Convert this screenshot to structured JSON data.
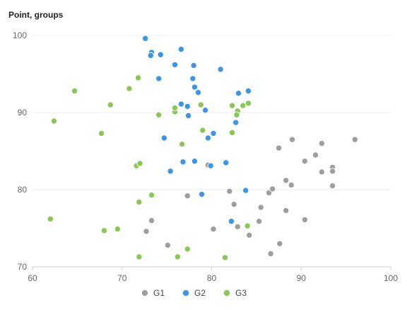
{
  "chart_data": {
    "type": "scatter",
    "title": "Point, groups",
    "xlabel": "",
    "ylabel": "",
    "xlim": [
      60,
      100
    ],
    "ylim": [
      70,
      100
    ],
    "x_ticks": [
      60,
      70,
      80,
      90,
      100
    ],
    "y_ticks": [
      70,
      80,
      90,
      100
    ],
    "grid": "horizontal",
    "legend_position": "bottom",
    "series": [
      {
        "name": "G1",
        "color": "#9e9e9e",
        "points": [
          [
            79.6,
            83.2
          ],
          [
            82.0,
            79.8
          ],
          [
            82.5,
            78.1
          ],
          [
            85.5,
            77.7
          ],
          [
            86.4,
            79.6
          ],
          [
            86.8,
            80.1
          ],
          [
            87.5,
            85.4
          ],
          [
            88.3,
            81.2
          ],
          [
            89.0,
            86.5
          ],
          [
            88.9,
            80.6
          ],
          [
            90.4,
            83.7
          ],
          [
            91.6,
            84.5
          ],
          [
            92.3,
            86.0
          ],
          [
            92.3,
            82.3
          ],
          [
            93.5,
            82.9
          ],
          [
            93.5,
            82.4
          ],
          [
            93.5,
            80.5
          ],
          [
            96.0,
            86.5
          ],
          [
            77.3,
            79.2
          ],
          [
            73.3,
            76.0
          ],
          [
            72.7,
            74.6
          ],
          [
            75.1,
            72.8
          ],
          [
            80.2,
            74.9
          ],
          [
            82.9,
            75.2
          ],
          [
            84.2,
            74.1
          ],
          [
            85.3,
            75.9
          ],
          [
            88.3,
            77.3
          ],
          [
            87.6,
            73.0
          ],
          [
            86.6,
            71.7
          ],
          [
            90.4,
            76.1
          ]
        ]
      },
      {
        "name": "G2",
        "color": "#3b96e8",
        "points": [
          [
            72.6,
            99.6
          ],
          [
            73.3,
            97.8
          ],
          [
            73.2,
            97.4
          ],
          [
            74.3,
            97.5
          ],
          [
            75.9,
            96.2
          ],
          [
            76.6,
            98.2
          ],
          [
            78.0,
            96.1
          ],
          [
            81.0,
            95.6
          ],
          [
            77.9,
            94.4
          ],
          [
            74.1,
            94.4
          ],
          [
            78.1,
            93.3
          ],
          [
            78.5,
            92.6
          ],
          [
            83.0,
            92.5
          ],
          [
            84.1,
            92.8
          ],
          [
            76.6,
            91.1
          ],
          [
            77.3,
            90.8
          ],
          [
            79.3,
            90.3
          ],
          [
            77.4,
            89.6
          ],
          [
            82.7,
            88.7
          ],
          [
            80.2,
            87.3
          ],
          [
            79.6,
            86.7
          ],
          [
            74.7,
            86.7
          ],
          [
            76.8,
            83.6
          ],
          [
            78.1,
            83.7
          ],
          [
            81.6,
            83.5
          ],
          [
            79.9,
            83.1
          ],
          [
            75.4,
            82.4
          ],
          [
            83.8,
            79.9
          ],
          [
            78.9,
            79.4
          ],
          [
            82.2,
            75.9
          ]
        ]
      },
      {
        "name": "G3",
        "color": "#8bc753",
        "points": [
          [
            64.7,
            92.8
          ],
          [
            62.4,
            88.9
          ],
          [
            67.7,
            87.3
          ],
          [
            68.7,
            91.0
          ],
          [
            70.8,
            93.1
          ],
          [
            71.8,
            94.5
          ],
          [
            74.1,
            89.7
          ],
          [
            75.9,
            90.1
          ],
          [
            75.9,
            90.6
          ],
          [
            78.8,
            91.0
          ],
          [
            79.0,
            87.7
          ],
          [
            76.7,
            85.9
          ],
          [
            82.3,
            87.4
          ],
          [
            82.3,
            90.9
          ],
          [
            82.9,
            90.2
          ],
          [
            82.8,
            89.7
          ],
          [
            83.5,
            90.9
          ],
          [
            84.1,
            91.2
          ],
          [
            71.6,
            83.1
          ],
          [
            72.0,
            83.4
          ],
          [
            73.3,
            79.3
          ],
          [
            71.9,
            78.4
          ],
          [
            68.0,
            74.7
          ],
          [
            69.5,
            74.9
          ],
          [
            71.9,
            71.3
          ],
          [
            76.2,
            71.3
          ],
          [
            77.3,
            72.3
          ],
          [
            81.5,
            71.2
          ],
          [
            84.0,
            75.3
          ],
          [
            62.0,
            76.2
          ]
        ]
      }
    ]
  }
}
